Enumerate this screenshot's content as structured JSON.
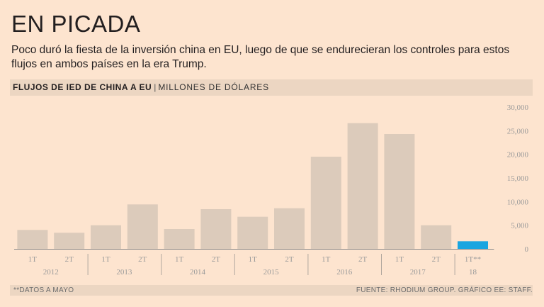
{
  "headline": "EN PICADA",
  "dek": "Poco duró la fiesta de la inversión china en EU, luego de que se endurecieran los controles para estos flujos en ambos países en la era Trump.",
  "section": {
    "title": "FLUJOS DE IED DE CHINA A EU",
    "separator": "|",
    "unit": "MILLONES DE DÓLARES"
  },
  "footer": {
    "note": "**DATOS A MAYO",
    "source": "FUENTE: RHODIUM GROUP.  GRÁFICO EE: STAFF."
  },
  "colors": {
    "background": "#fde4cf",
    "bar": "#dccbbb",
    "highlight_bar": "#1aa5e0",
    "axis_text": "#9a9a9a"
  },
  "chart_data": {
    "type": "bar",
    "categories": [
      "1T",
      "2T",
      "1T",
      "2T",
      "1T",
      "2T",
      "1T",
      "2T",
      "1T",
      "2T",
      "1T",
      "2T",
      "1T**"
    ],
    "years": [
      "2012",
      "2013",
      "2014",
      "2015",
      "2016",
      "2017",
      "18"
    ],
    "year_spans": [
      2,
      2,
      2,
      2,
      2,
      2,
      1
    ],
    "values": [
      4000,
      3400,
      5000,
      9400,
      4200,
      8400,
      6800,
      8600,
      19500,
      26600,
      24300,
      5000,
      1600
    ],
    "highlight_index": 12,
    "yticks": [
      "30,000",
      "25,000",
      "20,000",
      "15,000",
      "10,000",
      "5,000",
      "0"
    ],
    "ytick_values": [
      30000,
      25000,
      20000,
      15000,
      10000,
      5000,
      0
    ],
    "ylim": [
      0,
      30000
    ],
    "axis_position": "right",
    "grid": false
  }
}
